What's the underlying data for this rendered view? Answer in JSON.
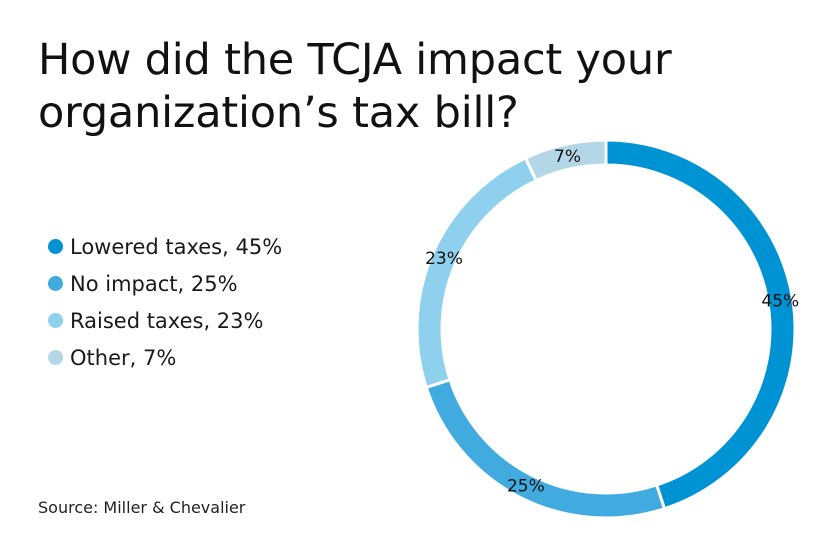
{
  "chart_data": {
    "type": "pie",
    "title": "How did the TCJA impact your organization’s tax bill?",
    "donut": true,
    "categories": [
      "Lowered taxes",
      "No impact",
      "Raised taxes",
      "Other"
    ],
    "values": [
      45,
      25,
      23,
      7
    ],
    "value_labels": [
      "45%",
      "25%",
      "23%",
      "7%"
    ],
    "legend_labels": [
      "Lowered taxes, 45%",
      "No impact, 25%",
      "Raised taxes, 23%",
      "Other, 7%"
    ],
    "colors": [
      "#0093d3",
      "#41abdf",
      "#8fd0ee",
      "#b4d7e8"
    ],
    "legend_position": "left"
  },
  "source": "Source: Miller & Chevalier"
}
